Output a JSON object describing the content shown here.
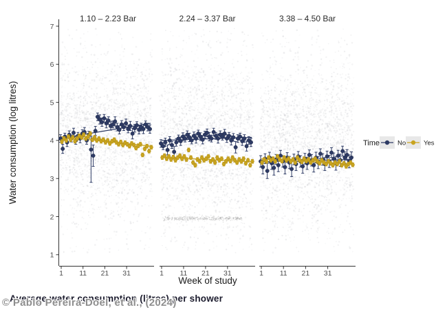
{
  "figure": {
    "caption": "Average water consumption (litres) per shower",
    "watermark": "© Pablo Pereira-Doel, et al., (2024)"
  },
  "chart_data": {
    "type": "scatter",
    "title": "",
    "xlabel": "Week of study",
    "ylabel": "Water consumption (log litres)",
    "x_ticks": [
      1,
      11,
      21,
      31
    ],
    "y_ticks": [
      1,
      2,
      3,
      4,
      5,
      6,
      7
    ],
    "xlim": [
      1,
      42
    ],
    "ylim": [
      0.7,
      7.2
    ],
    "grid": "off",
    "colors": {
      "no": "#2d3a64",
      "no_stroke": "#1f2947",
      "yes": "#c9a420",
      "yes_stroke": "#ad8c14",
      "cloud": "#c3c4c9",
      "band": "#9a9a9a",
      "axis": "#333333",
      "tick_text": "#4d4d4d",
      "facet_text": "#2b2b2b"
    },
    "legend": {
      "title": "Timer",
      "position": "right",
      "key_fill": "#e8e8e8",
      "items": [
        {
          "label": "No",
          "color": "#2d3a64"
        },
        {
          "label": "Yes",
          "color": "#c9a420"
        }
      ]
    },
    "panels": [
      {
        "title": "1.10 – 2.23 Bar",
        "series": {
          "no": {
            "y": [
              4.05,
              3.78,
              4.1,
              3.95,
              4.15,
              4.05,
              4.2,
              4.0,
              4.12,
              4.05,
              4.18,
              4.22,
              4.0,
              4.15,
              3.76,
              3.6,
              4.25,
              4.62,
              4.55,
              4.48,
              4.58,
              4.45,
              4.52,
              4.38,
              4.42,
              4.5,
              4.35,
              4.28,
              4.42,
              4.35,
              4.45,
              4.3,
              4.38,
              4.18,
              4.32,
              4.4,
              4.28,
              4.35,
              4.3,
              4.42,
              4.35,
              4.3
            ],
            "err": [
              0.1,
              0.12,
              0.09,
              0.11,
              0.1,
              0.09,
              0.12,
              0.1,
              0.09,
              0.11,
              0.1,
              0.12,
              0.1,
              0.09,
              0.35,
              0.28,
              0.12,
              0.1,
              0.12,
              0.11,
              0.1,
              0.12,
              0.1,
              0.11,
              0.09,
              0.12,
              0.1,
              0.11,
              0.1,
              0.09,
              0.11,
              0.1,
              0.12,
              0.14,
              0.1,
              0.09,
              0.11,
              0.1,
              0.12,
              0.09,
              0.1,
              0.11
            ],
            "err_lo_overrides": {
              "15": 0.86
            },
            "trend": [
              [
                1,
                4.06
              ],
              [
                42,
                4.45
              ]
            ]
          },
          "yes": {
            "y": [
              3.97,
              4.05,
              4.0,
              4.1,
              4.02,
              4.08,
              3.98,
              4.05,
              4.12,
              4.08,
              4.15,
              4.05,
              4.1,
              4.18,
              4.02,
              4.08,
              4.0,
              4.05,
              3.98,
              4.02,
              3.95,
              4.0,
              3.92,
              3.98,
              4.02,
              3.95,
              3.9,
              3.96,
              3.88,
              3.94,
              3.9,
              3.85,
              3.92,
              3.88,
              3.8,
              3.86,
              3.9,
              3.62,
              3.78,
              3.85,
              3.72,
              3.82
            ],
            "err": 0.05,
            "trend": [
              [
                1,
                4.1
              ],
              [
                42,
                3.85
              ]
            ]
          }
        },
        "cloud": {
          "count": 2300,
          "mean": 4.15,
          "sd": 1.0,
          "ymin": 1.05,
          "ymax": 6.95
        },
        "band": null
      },
      {
        "title": "2.24 – 3.37 Bar",
        "series": {
          "no": {
            "y": [
              3.92,
              3.85,
              3.95,
              3.75,
              4.0,
              3.88,
              3.7,
              3.95,
              4.05,
              3.98,
              4.1,
              4.05,
              4.15,
              4.08,
              4.0,
              4.12,
              4.05,
              4.18,
              4.1,
              4.02,
              4.15,
              4.2,
              4.1,
              4.05,
              4.22,
              4.12,
              4.05,
              4.15,
              4.1,
              4.18,
              4.05,
              4.12,
              4.0,
              4.08,
              3.82,
              4.05,
              4.1,
              3.98,
              4.05,
              3.85,
              4.0,
              3.95
            ],
            "err": [
              0.1,
              0.09,
              0.11,
              0.13,
              0.1,
              0.09,
              0.14,
              0.1,
              0.09,
              0.11,
              0.1,
              0.09,
              0.1,
              0.11,
              0.09,
              0.1,
              0.12,
              0.09,
              0.1,
              0.11,
              0.09,
              0.1,
              0.11,
              0.09,
              0.1,
              0.09,
              0.12,
              0.1,
              0.09,
              0.11,
              0.1,
              0.09,
              0.12,
              0.1,
              0.15,
              0.1,
              0.09,
              0.11,
              0.1,
              0.13,
              0.1,
              0.11
            ],
            "trend": [
              [
                1,
                4.0
              ],
              [
                42,
                4.08
              ]
            ]
          },
          "yes": {
            "y": [
              3.55,
              3.6,
              3.52,
              3.58,
              3.5,
              3.56,
              3.48,
              3.55,
              3.6,
              3.52,
              3.58,
              3.5,
              3.75,
              3.55,
              3.42,
              3.35,
              3.5,
              3.45,
              3.55,
              3.48,
              3.52,
              3.58,
              3.45,
              3.5,
              3.42,
              3.55,
              3.48,
              3.52,
              3.38,
              3.45,
              3.52,
              3.46,
              3.55,
              3.48,
              3.42,
              3.5,
              3.45,
              3.52,
              3.4,
              3.48,
              3.35,
              3.45
            ],
            "err": 0.05,
            "trend": [
              [
                1,
                3.56
              ],
              [
                42,
                3.44
              ]
            ]
          }
        },
        "cloud": {
          "count": 2300,
          "mean": 4.0,
          "sd": 1.05,
          "ymin": 1.05,
          "ymax": 6.95
        },
        "band": {
          "value": 1.95,
          "week_start": 2,
          "week_end": 38,
          "count": 300
        }
      },
      {
        "title": "3.38 – 4.50 Bar",
        "series": {
          "no": {
            "y": [
              3.45,
              3.3,
              3.52,
              3.2,
              3.55,
              3.4,
              3.28,
              3.5,
              3.35,
              3.6,
              3.45,
              3.3,
              3.55,
              3.42,
              3.25,
              3.5,
              3.38,
              3.58,
              3.45,
              3.32,
              3.52,
              3.4,
              3.62,
              3.48,
              3.35,
              3.55,
              3.42,
              3.65,
              3.5,
              3.38,
              3.58,
              3.45,
              3.68,
              3.52,
              3.4,
              3.6,
              3.48,
              3.72,
              3.55,
              3.62,
              3.45,
              3.55
            ],
            "err": [
              0.15,
              0.18,
              0.13,
              0.2,
              0.14,
              0.16,
              0.19,
              0.13,
              0.17,
              0.14,
              0.15,
              0.18,
              0.13,
              0.16,
              0.2,
              0.14,
              0.17,
              0.13,
              0.15,
              0.18,
              0.14,
              0.16,
              0.13,
              0.15,
              0.18,
              0.14,
              0.16,
              0.13,
              0.15,
              0.17,
              0.14,
              0.16,
              0.13,
              0.15,
              0.18,
              0.14,
              0.16,
              0.13,
              0.15,
              0.14,
              0.17,
              0.15
            ],
            "trend": [
              [
                1,
                3.44
              ],
              [
                42,
                3.5
              ]
            ]
          },
          "yes": {
            "y": [
              3.42,
              3.5,
              3.45,
              3.55,
              3.48,
              3.52,
              3.45,
              3.58,
              3.5,
              3.46,
              3.55,
              3.48,
              3.52,
              3.45,
              3.5,
              3.42,
              3.55,
              3.48,
              3.44,
              3.52,
              3.46,
              3.5,
              3.42,
              3.48,
              3.52,
              3.45,
              3.4,
              3.48,
              3.42,
              3.38,
              3.45,
              3.4,
              3.35,
              3.42,
              3.38,
              3.45,
              3.35,
              3.4,
              3.32,
              3.38,
              3.42,
              3.36
            ],
            "err": 0.05,
            "trend": [
              [
                1,
                3.52
              ],
              [
                42,
                3.38
              ]
            ]
          }
        },
        "cloud": {
          "count": 2300,
          "mean": 3.9,
          "sd": 1.05,
          "ymin": 1.05,
          "ymax": 6.95
        },
        "band": null
      }
    ]
  }
}
